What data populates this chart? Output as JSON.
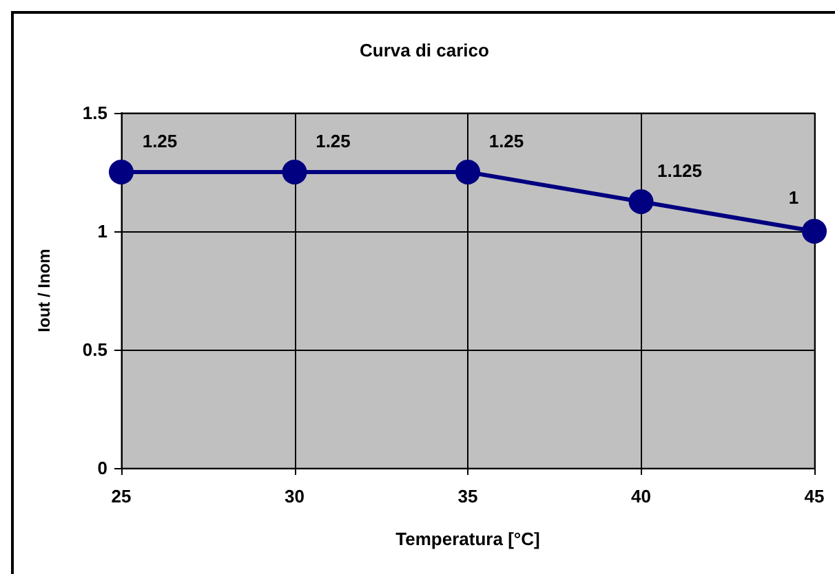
{
  "chart_data": {
    "type": "line",
    "title": "Curva di carico",
    "xlabel": "Temperatura [°C]",
    "ylabel": "Iout / Inom",
    "x": [
      25,
      30,
      35,
      40,
      45
    ],
    "series": [
      {
        "color": "#000080",
        "values": [
          1.25,
          1.25,
          1.25,
          1.125,
          1
        ]
      }
    ],
    "xlim": [
      25,
      45
    ],
    "xticks": [
      25,
      30,
      35,
      40,
      45
    ],
    "ylim": [
      0,
      1.5
    ],
    "yticks": [
      0,
      0.5,
      1,
      1.5
    ],
    "grid": true,
    "marker": "circle",
    "line_style": "solid",
    "data_labels": true
  }
}
